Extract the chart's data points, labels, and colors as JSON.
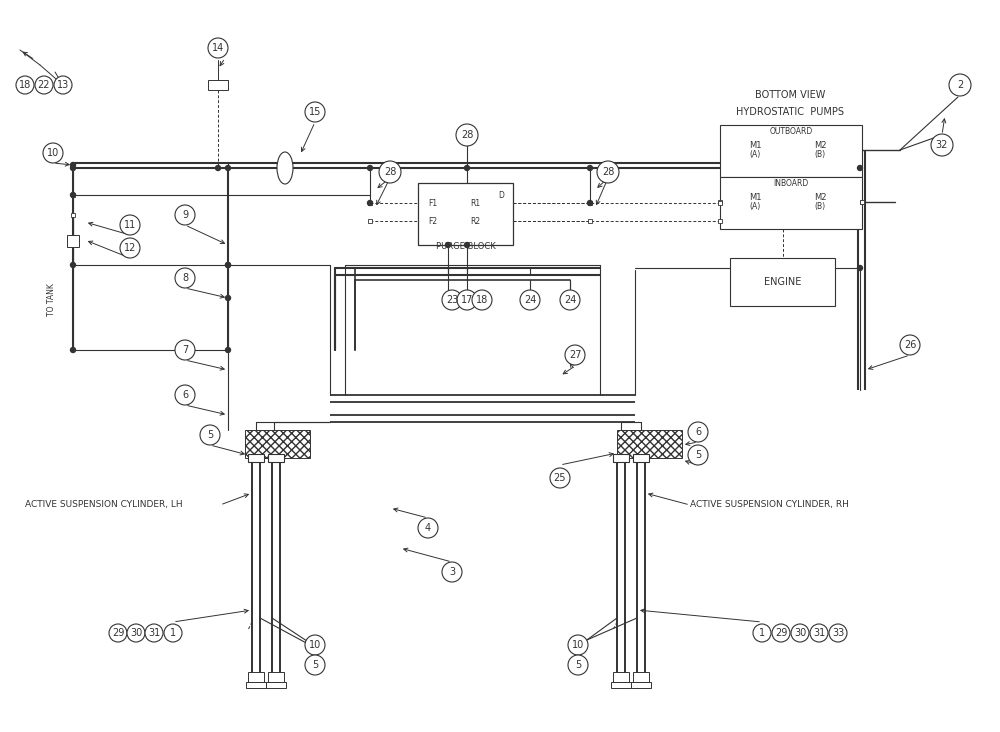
{
  "bg_color": "#ffffff",
  "line_color": "#333333",
  "text_color": "#333333",
  "labels": {
    "bottom_view": "BOTTOM VIEW",
    "hydrostatic_pumps": "HYDROSTATIC  PUMPS",
    "outboard": "OUTBOARD",
    "inboard": "INBOARD",
    "engine": "ENGINE",
    "purge_block": "PURGE BLOCK",
    "lh_cylinder": "ACTIVE SUSPENSION CYLINDER, LH",
    "rh_cylinder": "ACTIVE SUSPENSION CYLINDER, RH",
    "to_tank": "TO TANK",
    "f1": "F1",
    "r1": "R1",
    "f2": "F2",
    "r2": "R2",
    "d": "D"
  }
}
